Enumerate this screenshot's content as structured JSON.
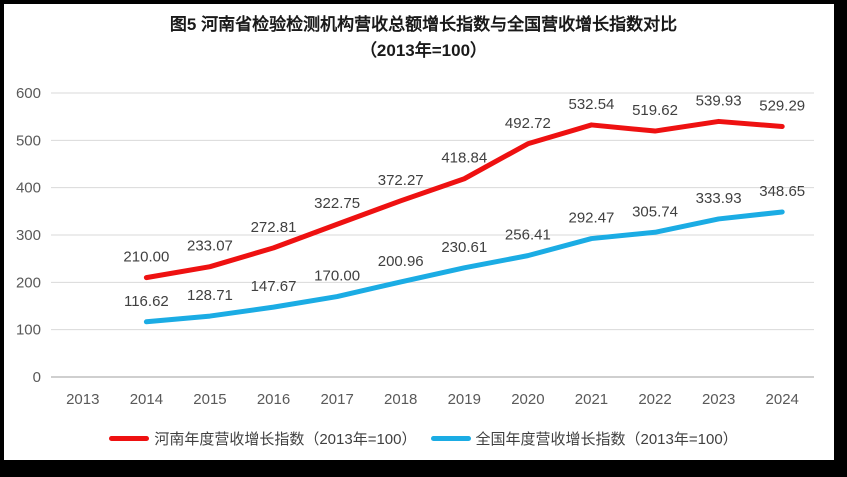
{
  "title": {
    "line1": "图5  河南省检验检测机构营收总额增长指数与全国营收增长指数对比",
    "line2": "（2013年=100）"
  },
  "chart_data": {
    "type": "line",
    "categories": [
      "2013",
      "2014",
      "2015",
      "2016",
      "2017",
      "2018",
      "2019",
      "2020",
      "2021",
      "2022",
      "2023",
      "2024"
    ],
    "series": [
      {
        "name": "河南年度营收增长指数（2013年=100）",
        "color": "#ee1111",
        "values": [
          null,
          210.0,
          233.07,
          272.81,
          322.75,
          372.27,
          418.84,
          492.72,
          532.54,
          519.62,
          539.93,
          529.29
        ]
      },
      {
        "name": "全国年度营收增长指数（2013年=100）",
        "color": "#1bace4",
        "values": [
          null,
          116.62,
          128.71,
          147.67,
          170.0,
          200.96,
          230.61,
          256.41,
          292.47,
          305.74,
          333.93,
          348.65
        ]
      }
    ],
    "title": "图5  河南省检验检测机构营收总额增长指数与全国营收增长指数对比（2013年=100）",
    "xlabel": "",
    "ylabel": "",
    "ylim": [
      0,
      600
    ],
    "y_ticks": [
      0,
      100,
      200,
      300,
      400,
      500,
      600
    ],
    "grid": true,
    "grid_color": "#d9d9d9",
    "zero_line_color": "#bfbfbf",
    "tick_label_color": "#595959",
    "data_label_color": "#404040",
    "data_labels": true,
    "label_decimals": 2,
    "legend_position": "bottom"
  }
}
